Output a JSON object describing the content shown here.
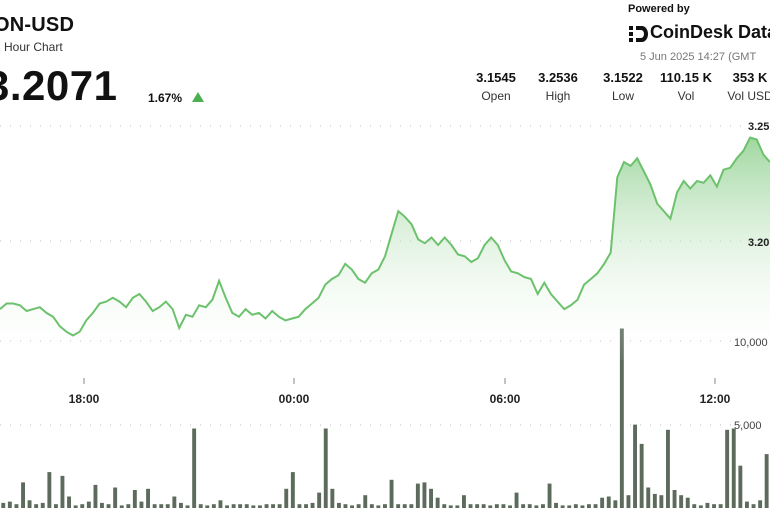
{
  "header": {
    "pair": "ON-USD",
    "subtitle": "Hour Chart",
    "price": "3.2071",
    "change": "1.67%",
    "powered_by": "Powered by",
    "brand": "CoinDesk Data",
    "timestamp": "5 Jun 2025 14:27 (GMT"
  },
  "stats": [
    {
      "value": "3.1545",
      "label": "Open"
    },
    {
      "value": "3.2536",
      "label": "High"
    },
    {
      "value": "3.1522",
      "label": "Low"
    },
    {
      "value": "110.15 K",
      "label": "Vol"
    },
    {
      "value": "353 K",
      "label": "Vol USD"
    }
  ],
  "colors": {
    "line": "#6cc26c",
    "fill_top": "#8fd08f",
    "bar": "#5d6b5d",
    "accent": "#4caf50"
  },
  "chart_data": {
    "type": "area",
    "x_tick_labels": [
      "18:00",
      "00:00",
      "06:00",
      "12:00"
    ],
    "price_tick_labels": [
      "3.25",
      "3.20"
    ],
    "volume_tick_labels": [
      "10,000",
      "5,000"
    ],
    "price_ylim": [
      3.135,
      3.265
    ],
    "volume_ylim": [
      0,
      17000
    ],
    "grid": true,
    "price_series": [
      3.162,
      3.165,
      3.165,
      3.164,
      3.161,
      3.162,
      3.163,
      3.16,
      3.158,
      3.153,
      3.15,
      3.148,
      3.15,
      3.156,
      3.16,
      3.165,
      3.166,
      3.168,
      3.166,
      3.163,
      3.168,
      3.17,
      3.166,
      3.161,
      3.163,
      3.166,
      3.162,
      3.152,
      3.159,
      3.158,
      3.164,
      3.163,
      3.167,
      3.177,
      3.168,
      3.16,
      3.158,
      3.162,
      3.159,
      3.16,
      3.157,
      3.161,
      3.158,
      3.156,
      3.157,
      3.158,
      3.162,
      3.165,
      3.168,
      3.175,
      3.178,
      3.18,
      3.186,
      3.183,
      3.178,
      3.176,
      3.181,
      3.183,
      3.19,
      3.202,
      3.214,
      3.211,
      3.207,
      3.199,
      3.197,
      3.2,
      3.196,
      3.2,
      3.196,
      3.191,
      3.19,
      3.187,
      3.189,
      3.196,
      3.2,
      3.196,
      3.188,
      3.182,
      3.181,
      3.179,
      3.178,
      3.17,
      3.176,
      3.17,
      3.166,
      3.162,
      3.164,
      3.167,
      3.175,
      3.178,
      3.181,
      3.186,
      3.192,
      3.232,
      3.24,
      3.238,
      3.242,
      3.235,
      3.228,
      3.218,
      3.214,
      3.21,
      3.224,
      3.23,
      3.226,
      3.23,
      3.229,
      3.233,
      3.227,
      3.236,
      3.237,
      3.242,
      3.246,
      3.253,
      3.252,
      3.244,
      3.24
    ],
    "volume_series": [
      400,
      500,
      300,
      2000,
      600,
      300,
      400,
      2800,
      300,
      2500,
      900,
      200,
      300,
      500,
      1800,
      400,
      300,
      1600,
      200,
      300,
      1400,
      500,
      1500,
      300,
      300,
      300,
      900,
      400,
      200,
      6200,
      300,
      200,
      300,
      600,
      200,
      300,
      300,
      300,
      200,
      200,
      300,
      300,
      300,
      1500,
      2800,
      300,
      300,
      400,
      1200,
      6200,
      1500,
      400,
      300,
      200,
      300,
      1000,
      300,
      200,
      300,
      2200,
      300,
      300,
      300,
      1900,
      2000,
      1500,
      800,
      300,
      200,
      200,
      1000,
      300,
      300,
      300,
      200,
      300,
      300,
      200,
      1200,
      300,
      300,
      200,
      300,
      1900,
      400,
      200,
      200,
      300,
      200,
      300,
      300,
      800,
      900,
      600,
      14000,
      1000,
      6500,
      5000,
      1600,
      1100,
      1000,
      6100,
      1400,
      1000,
      800,
      300,
      200,
      400,
      300,
      300,
      6100,
      6200,
      3300,
      500,
      300,
      600,
      4200
    ]
  }
}
